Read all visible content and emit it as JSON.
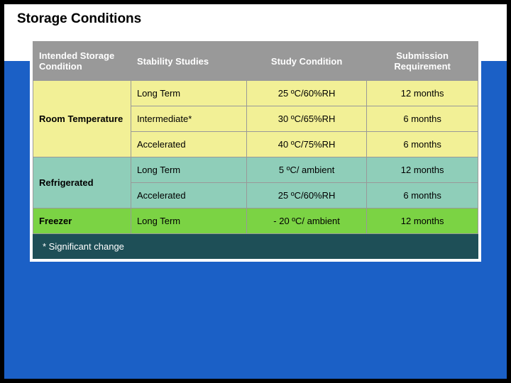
{
  "title": "Storage Conditions",
  "colors": {
    "page_bg": "#1b60c6",
    "outer_border": "#000000",
    "title_bar_bg": "#ffffff",
    "title_text": "#000000",
    "table_outer_border": "#ffffff",
    "cell_border": "#999999",
    "header_bg": "#999999",
    "header_text": "#ffffff",
    "row_yellow": "#f2f096",
    "row_teal": "#8fceb9",
    "row_green": "#7bd344",
    "footnote_bg": "#1e4f57",
    "footnote_text": "#ffffff"
  },
  "typography": {
    "title_fontsize": 19,
    "title_weight": "bold",
    "header_fontsize": 13,
    "cell_fontsize": 13,
    "footnote_fontsize": 13,
    "font_family": "Arial"
  },
  "table": {
    "type": "table",
    "col_widths_pct": [
      22,
      26,
      27,
      25
    ],
    "columns": [
      "Intended Storage Condition",
      "Stability Studies",
      "Study Condition",
      "Submission Requirement"
    ],
    "col_align": [
      "left",
      "left",
      "center",
      "center"
    ],
    "groups": [
      {
        "label": "Room Temperature",
        "bg": "#f2f096",
        "rows": [
          {
            "study": "Long Term",
            "condition": "25 ºC/60%RH",
            "requirement": "12 months"
          },
          {
            "study": "Intermediate*",
            "condition": "30 ºC/65%RH",
            "requirement": "6 months"
          },
          {
            "study": "Accelerated",
            "condition": "40 ºC/75%RH",
            "requirement": "6 months"
          }
        ]
      },
      {
        "label": "Refrigerated",
        "bg": "#8fceb9",
        "rows": [
          {
            "study": "Long Term",
            "condition": "5 ºC/ ambient",
            "requirement": "12 months"
          },
          {
            "study": "Accelerated",
            "condition": "25 ºC/60%RH",
            "requirement": "6 months"
          }
        ]
      },
      {
        "label": "Freezer",
        "bg": "#7bd344",
        "rows": [
          {
            "study": "Long Term",
            "condition": "- 20 ºC/ ambient",
            "requirement": "12 months"
          }
        ]
      }
    ]
  },
  "footnote": "* Significant change"
}
